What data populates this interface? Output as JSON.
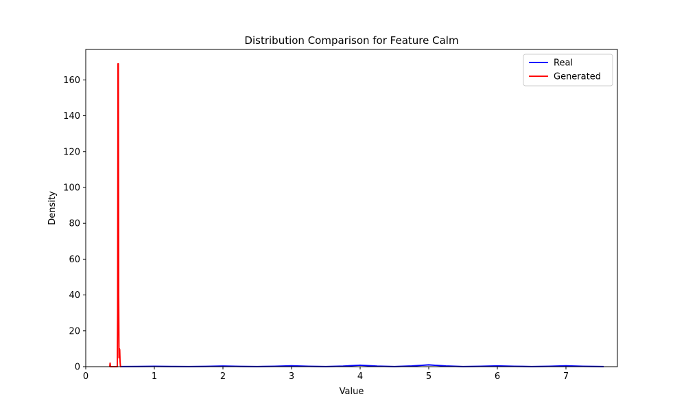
{
  "chart_data": {
    "type": "line",
    "title": "Distribution Comparison for Feature Calm",
    "xlabel": "Value",
    "ylabel": "Density",
    "xlim": [
      0,
      7.75
    ],
    "ylim": [
      0,
      177
    ],
    "xticks": [
      0,
      1,
      2,
      3,
      4,
      5,
      6,
      7
    ],
    "yticks": [
      0,
      20,
      40,
      60,
      80,
      100,
      120,
      140,
      160
    ],
    "grid": false,
    "legend_position": "top-right",
    "series": [
      {
        "name": "Real",
        "color": "#0000ff",
        "x": [
          0.5,
          0.75,
          1.0,
          1.25,
          1.5,
          1.75,
          2.0,
          2.25,
          2.5,
          2.75,
          3.0,
          3.25,
          3.5,
          3.75,
          4.0,
          4.25,
          4.5,
          4.75,
          5.0,
          5.25,
          5.5,
          5.75,
          6.0,
          6.25,
          6.5,
          6.75,
          7.0,
          7.25,
          7.55
        ],
        "values": [
          0.05,
          0.1,
          0.2,
          0.1,
          0.05,
          0.15,
          0.35,
          0.15,
          0.05,
          0.2,
          0.5,
          0.2,
          0.05,
          0.3,
          0.8,
          0.3,
          0.05,
          0.4,
          1.0,
          0.4,
          0.05,
          0.2,
          0.45,
          0.2,
          0.05,
          0.2,
          0.5,
          0.2,
          0.05
        ]
      },
      {
        "name": "Generated",
        "color": "#ff0000",
        "x": [
          0.35,
          0.355,
          0.36,
          0.37,
          0.38,
          0.4,
          0.42,
          0.44,
          0.46,
          0.465,
          0.47,
          0.475,
          0.48,
          0.485,
          0.49,
          0.495,
          0.5,
          0.505,
          0.51,
          0.52
        ],
        "values": [
          0.0,
          2.0,
          0.0,
          0.0,
          0.0,
          0.0,
          0.0,
          0.0,
          0.0,
          30.0,
          169.0,
          169.0,
          40.0,
          5.0,
          10.0,
          9.5,
          3.0,
          0.5,
          0.0,
          0.0
        ]
      }
    ]
  }
}
